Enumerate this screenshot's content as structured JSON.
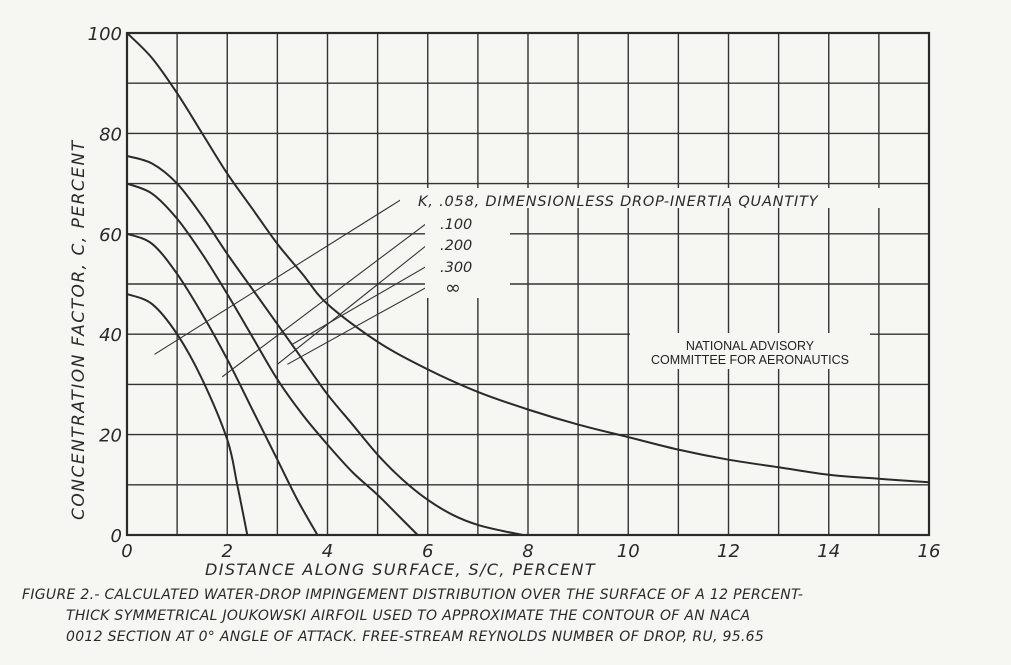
{
  "chart_data": {
    "type": "line",
    "title": "",
    "xlabel": "DISTANCE ALONG SURFACE, S/C, PERCENT",
    "ylabel": "CONCENTRATION FACTOR, C, PERCENT",
    "xlim": [
      0,
      16
    ],
    "ylim": [
      0,
      100
    ],
    "x_ticks": [
      0,
      2,
      4,
      6,
      8,
      10,
      12,
      14,
      16
    ],
    "y_ticks": [
      0,
      20,
      40,
      60,
      80,
      100
    ],
    "x_tick_labels": [
      "0",
      "2",
      "4",
      "6",
      "8",
      "10",
      "12",
      "14",
      "16"
    ],
    "y_tick_labels": [
      "0",
      "20",
      "40",
      "60",
      "80",
      "100"
    ],
    "grid": true,
    "grid_x_step": 1,
    "grid_y_step": 10,
    "legend_title": "K, DIMENSIONLESS DROP-INERTIA QUANTITY",
    "series": [
      {
        "name": ".058",
        "label": "K, .058, DIMENSIONLESS DROP-INERTIA QUANTITY",
        "x": [
          0,
          0.5,
          1,
          1.5,
          2,
          2.2,
          2.4
        ],
        "y": [
          48,
          46,
          40,
          31,
          19,
          10,
          0
        ],
        "label_anchor": [
          0.55,
          36
        ]
      },
      {
        "name": ".100",
        "label": ".100",
        "x": [
          0,
          0.5,
          1,
          1.5,
          2,
          2.5,
          3,
          3.4,
          3.8
        ],
        "y": [
          60,
          58,
          52,
          44,
          35,
          25,
          15,
          7,
          0
        ],
        "label_anchor": [
          1.9,
          31.5
        ]
      },
      {
        "name": ".200",
        "label": ".200",
        "x": [
          0,
          0.5,
          1,
          1.5,
          2,
          2.5,
          3,
          3.5,
          4,
          4.5,
          5,
          5.4,
          5.8
        ],
        "y": [
          70,
          68,
          63,
          56,
          48,
          39.5,
          31,
          24,
          18,
          12.5,
          8,
          4,
          0
        ],
        "label_anchor": [
          3.0,
          34
        ]
      },
      {
        "name": ".300",
        "label": ".300",
        "x": [
          0,
          0.5,
          1,
          1.5,
          2,
          2.5,
          3,
          3.5,
          4,
          4.5,
          5,
          5.5,
          6,
          6.5,
          7,
          7.5,
          7.9
        ],
        "y": [
          75.5,
          74,
          70,
          63.5,
          56,
          49,
          42,
          35,
          28,
          22,
          16,
          11,
          7,
          4,
          2,
          0.8,
          0
        ],
        "label_anchor": [
          3.3,
          38
        ]
      },
      {
        "name": "∞",
        "label": "∞",
        "x": [
          0,
          0.5,
          1,
          1.5,
          2,
          2.5,
          3,
          3.5,
          4,
          5,
          6,
          7,
          8,
          9,
          10,
          11,
          12,
          13,
          14,
          15,
          16
        ],
        "y": [
          100,
          95,
          88,
          80,
          72,
          65,
          58,
          52,
          46,
          38.5,
          33,
          28.5,
          25,
          22,
          19.5,
          17,
          15,
          13.5,
          12,
          11.2,
          10.5
        ],
        "label_anchor": [
          3.2,
          34
        ]
      }
    ],
    "annotations": [
      "NATIONAL ADVISORY",
      "COMMITTEE FOR AERONAUTICS"
    ]
  },
  "labels": {
    "ylabel": "CONCENTRATION FACTOR, C, PERCENT",
    "xlabel": "DISTANCE ALONG SURFACE, S/C, PERCENT",
    "legend_058": "K, .058, DIMENSIONLESS DROP-INERTIA QUANTITY",
    "legend_100": ".100",
    "legend_200": ".200",
    "legend_300": ".300",
    "legend_inf": "∞",
    "naca_line1": "NATIONAL ADVISORY",
    "naca_line2": "COMMITTEE FOR AERONAUTICS"
  },
  "caption": {
    "line1": "FIGURE 2.- CALCULATED WATER-DROP IMPINGEMENT DISTRIBUTION OVER THE SURFACE OF A 12 PERCENT-",
    "line2": "THICK SYMMETRICAL JOUKOWSKI AIRFOIL USED TO APPROXIMATE THE CONTOUR OF AN NACA",
    "line3": "0012 SECTION AT 0° ANGLE OF ATTACK. FREE-STREAM REYNOLDS NUMBER OF DROP, RU, 95.65"
  },
  "colors": {
    "paper": "#f6f6f2",
    "ink": "#2a2a2a"
  }
}
